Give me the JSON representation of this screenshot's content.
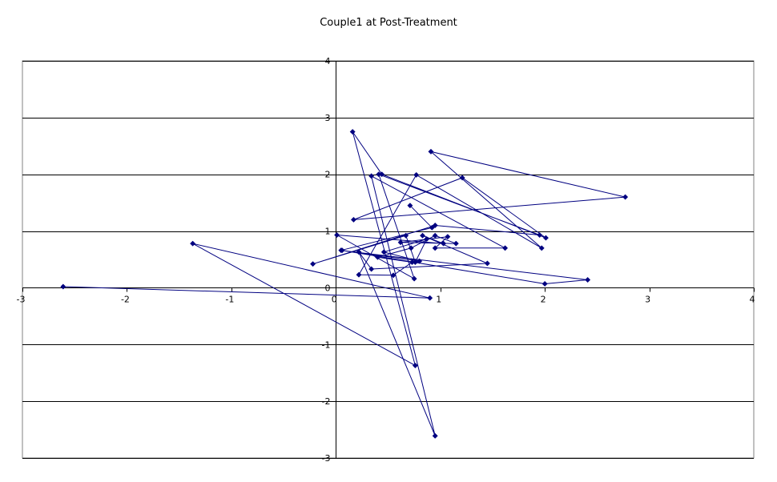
{
  "chart_data": {
    "type": "line",
    "title": "Couple1 at Post-Treatment",
    "xlabel": "",
    "ylabel": "",
    "xlim": [
      -3,
      4
    ],
    "ylim": [
      -3,
      4
    ],
    "x_ticks": [
      -3,
      -2,
      -1,
      0,
      1,
      2,
      3,
      4
    ],
    "y_ticks": [
      -3,
      -2,
      -1,
      0,
      1,
      2,
      3,
      4
    ],
    "x_tick_labels": [
      "-3",
      "-2",
      "-1",
      "0",
      "1",
      "2",
      "3",
      "4"
    ],
    "y_tick_labels": [
      "-3",
      "-2",
      "-1",
      "0",
      "1",
      "2",
      "3",
      "4"
    ],
    "horizontal_grid": true,
    "vertical_grid": false,
    "legend": "none",
    "colors": {
      "series": "#000080",
      "grid": "#000000",
      "axis": "#000000"
    },
    "series": [
      {
        "marker": "diamond",
        "x": [
          -2.61,
          0.9,
          -1.37,
          0.76,
          0.16,
          0.44,
          2.01,
          1.21,
          0.17,
          2.77,
          0.91,
          1.97,
          0.77,
          0.22,
          0.55,
          0.73,
          0.4,
          0.72,
          0.95,
          1.15,
          0.62,
          1.07,
          0.95,
          1.62,
          0.34,
          0.95,
          0.22,
          0.34,
          1.45,
          0.83,
          1.03,
          0.01,
          0.75,
          0.41,
          1.95,
          0.95,
          -0.22,
          0.67,
          0.76,
          0.87,
          0.46,
          0.8,
          0.06,
          2.0,
          2.41,
          0.05,
          0.92,
          0.71
        ],
        "y": [
          0.02,
          -0.18,
          0.78,
          -1.37,
          2.75,
          2.0,
          0.88,
          1.94,
          1.2,
          1.6,
          2.4,
          0.7,
          1.99,
          0.23,
          0.22,
          0.45,
          0.54,
          0.7,
          0.92,
          0.78,
          0.8,
          0.9,
          0.7,
          0.7,
          1.97,
          -2.61,
          0.63,
          0.33,
          0.43,
          0.92,
          0.78,
          0.93,
          0.16,
          2.0,
          0.93,
          1.1,
          0.42,
          0.92,
          0.45,
          0.86,
          0.63,
          0.47,
          0.66,
          0.07,
          0.14,
          0.66,
          1.06,
          1.45
        ]
      }
    ]
  }
}
